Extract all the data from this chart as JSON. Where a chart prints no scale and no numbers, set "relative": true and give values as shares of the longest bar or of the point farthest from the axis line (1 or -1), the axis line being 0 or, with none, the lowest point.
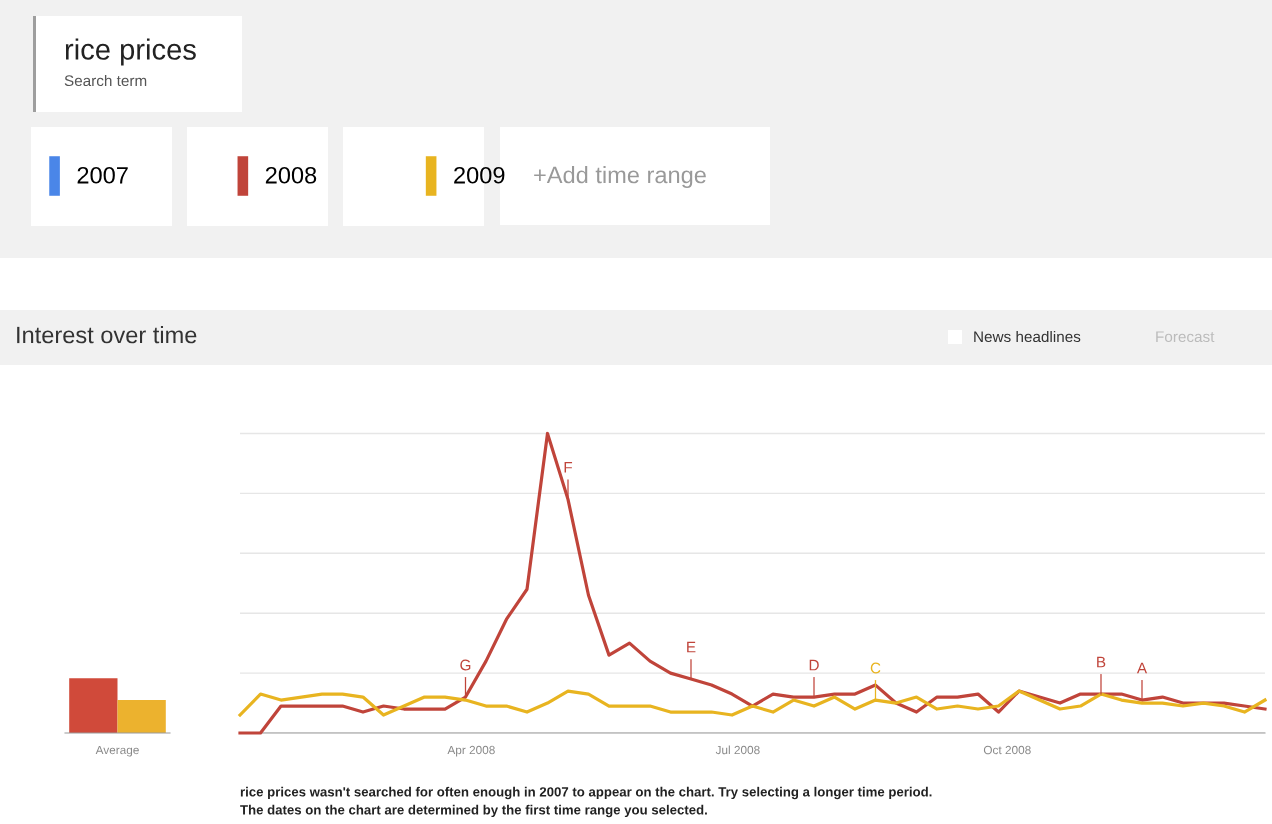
{
  "chart_data": [
    {
      "type": "other",
      "annotations": [
        "rice prices",
        "Search term",
        "+Add time range",
        "News headlines",
        "Forecast"
      ]
    },
    {
      "type": "bar",
      "categories": [
        "Average"
      ],
      "relative": true,
      "tick_labels": "x",
      "series": [
        {
          "color": "#d04a3a",
          "values": [
            1
          ]
        },
        {
          "color": "#ecb22e",
          "values": [
            0.6
          ]
        }
      ]
    },
    {
      "type": "line",
      "title": "Interest over time",
      "relative": true,
      "grid": "y",
      "legend": "top left",
      "tick_labels": "x",
      "marker": "none",
      "line_style": "solid",
      "x": [
        "2008-01-13",
        "2008-01-20",
        "2008-01-27",
        "2008-02-03",
        "2008-02-10",
        "2008-02-17",
        "2008-02-24",
        "2008-03-02",
        "2008-03-09",
        "2008-03-16",
        "2008-03-23",
        "2008-03-30",
        "2008-04-06",
        "2008-04-13",
        "2008-04-20",
        "2008-04-27",
        "2008-05-04",
        "2008-05-11",
        "2008-05-18",
        "2008-05-25",
        "2008-06-01",
        "2008-06-08",
        "2008-06-15",
        "2008-06-22",
        "2008-06-29",
        "2008-07-06",
        "2008-07-13",
        "2008-07-20",
        "2008-07-27",
        "2008-08-03",
        "2008-08-10",
        "2008-08-17",
        "2008-08-24",
        "2008-08-31",
        "2008-09-07",
        "2008-09-14",
        "2008-09-21",
        "2008-09-28",
        "2008-10-05",
        "2008-10-12",
        "2008-10-19",
        "2008-10-26",
        "2008-11-02",
        "2008-11-09",
        "2008-11-16",
        "2008-11-23",
        "2008-11-30",
        "2008-12-07",
        "2008-12-14",
        "2008-12-21",
        "2008-12-28"
      ],
      "xlim": [
        "2008-01-13",
        "2008-12-28"
      ],
      "xticks": [
        {
          "value": "2008-04-01",
          "label": "Apr 2008"
        },
        {
          "value": "2008-07-01",
          "label": "Jul 2008"
        },
        {
          "value": "2008-10-01",
          "label": "Oct 2008"
        }
      ],
      "series": [
        {
          "name": "2007",
          "color": "#4a86e8",
          "values": [
            null,
            null,
            null,
            null,
            null,
            null,
            null,
            null,
            null,
            null,
            null,
            null,
            null,
            null,
            null,
            null,
            null,
            null,
            null,
            null,
            null,
            null,
            null,
            null,
            null,
            null,
            null,
            null,
            null,
            null,
            null,
            null,
            null,
            null,
            null,
            null,
            null,
            null,
            null,
            null,
            null,
            null,
            null,
            null,
            null,
            null,
            null,
            null,
            null,
            null,
            null
          ]
        },
        {
          "name": "2008",
          "color": "#c0443a",
          "values": [
            0,
            0,
            0.09,
            0.09,
            0.09,
            0.09,
            0.07,
            0.09,
            0.08,
            0.08,
            0.08,
            0.12,
            0.24,
            0.38,
            0.48,
            1,
            0.78,
            0.46,
            0.26,
            0.3,
            0.24,
            0.2,
            0.18,
            0.16,
            0.13,
            0.09,
            0.13,
            0.12,
            0.12,
            0.13,
            0.13,
            0.16,
            0.1,
            0.07,
            0.12,
            0.12,
            0.13,
            0.07,
            0.14,
            0.12,
            0.1,
            0.13,
            0.13,
            0.13,
            0.11,
            0.12,
            0.1,
            0.1,
            0.1,
            0.09,
            0.08
          ]
        },
        {
          "name": "2009",
          "color": "#e8b420",
          "values": [
            0.06,
            0.13,
            0.11,
            0.12,
            0.13,
            0.13,
            0.12,
            0.06,
            0.09,
            0.12,
            0.12,
            0.11,
            0.09,
            0.09,
            0.07,
            0.1,
            0.14,
            0.13,
            0.09,
            0.09,
            0.09,
            0.07,
            0.07,
            0.07,
            0.06,
            0.09,
            0.07,
            0.11,
            0.09,
            0.12,
            0.08,
            0.11,
            0.1,
            0.12,
            0.08,
            0.09,
            0.08,
            0.09,
            0.14,
            0.11,
            0.08,
            0.09,
            0.13,
            0.11,
            0.1,
            0.1,
            0.09,
            0.1,
            0.09,
            0.07,
            0.11
          ]
        }
      ],
      "annotations": [
        {
          "text": "G",
          "x": "2008-03-30",
          "y": 0.12
        },
        {
          "text": "F",
          "x": "2008-05-04",
          "y": 0.78
        },
        {
          "text": "E",
          "x": "2008-06-15",
          "y": 0.18
        },
        {
          "text": "D",
          "x": "2008-07-27",
          "y": 0.12
        },
        {
          "text": "C",
          "x": "2008-08-17",
          "y": 0.11
        },
        {
          "text": "B",
          "x": "2008-11-02",
          "y": 0.13
        },
        {
          "text": "A",
          "x": "2008-11-16",
          "y": 0.11
        },
        "rice prices wasn't searched for often enough in 2007 to appear on the chart. Try selecting a longer time period.",
        "The dates on the chart are determined by the first time range you selected."
      ]
    }
  ]
}
